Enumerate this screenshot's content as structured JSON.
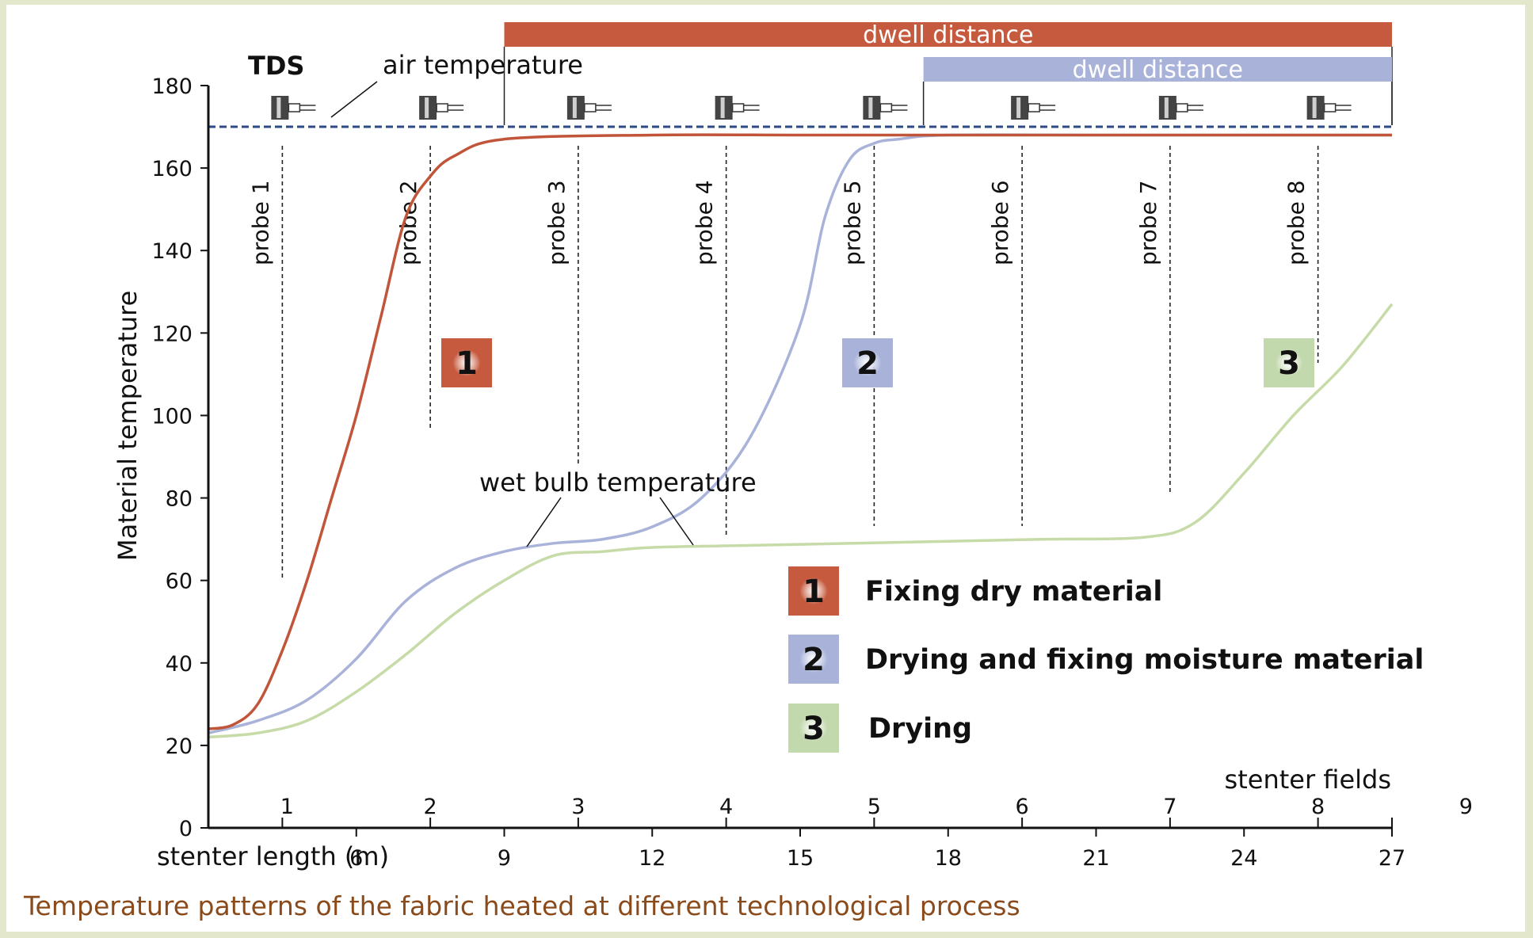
{
  "title": "TDS",
  "caption": "Temperature patterns of the fabric heated at different technological process",
  "annotations": {
    "air_temperature": "air temperature",
    "wet_bulb_temperature": "wet bulb temperature"
  },
  "dwell_bars": [
    {
      "label": "dwell distance",
      "color": "#c55a3e",
      "x_start": 9,
      "x_end": 27
    },
    {
      "label": "dwell distance",
      "color": "#a9b3d9",
      "x_start": 17.5,
      "x_end": 27
    }
  ],
  "probes": [
    {
      "label": "probe 1",
      "x": 4.5
    },
    {
      "label": "probe 2",
      "x": 7.5
    },
    {
      "label": "probe 3",
      "x": 10.5
    },
    {
      "label": "probe 4",
      "x": 13.5
    },
    {
      "label": "probe 5",
      "x": 16.5
    },
    {
      "label": "probe 6",
      "x": 19.5
    },
    {
      "label": "probe 7",
      "x": 22.5
    },
    {
      "label": "probe 8",
      "x": 25.5
    }
  ],
  "legend": [
    {
      "num": "1",
      "label": "Fixing dry material",
      "color": "#c55a3e"
    },
    {
      "num": "2",
      "label": "Drying and fixing moisture material",
      "color": "#a9b3d9"
    },
    {
      "num": "3",
      "label": "Drying",
      "color": "#c2d8ad"
    }
  ],
  "stenter_fields": {
    "label": "stenter fields",
    "items": [
      "1",
      "2",
      "3",
      "4",
      "5",
      "6",
      "7",
      "8",
      "9"
    ]
  },
  "colors": {
    "curve1": "#c0553a",
    "curve2": "#a9b3d9",
    "curve3": "#c6dba8",
    "air_line": "#2a4a8a",
    "axis": "#111111",
    "caption": "#8b4a1a",
    "background": "#e3e8cc"
  },
  "chart_data": {
    "type": "line",
    "title": "TDS",
    "xlabel": "stenter length (m)",
    "ylabel": "Material temperature",
    "xlim": [
      3,
      27
    ],
    "ylim": [
      0,
      180
    ],
    "xticks": [
      6,
      9,
      12,
      15,
      18,
      21,
      24,
      27
    ],
    "yticks": [
      0,
      20,
      40,
      60,
      80,
      100,
      120,
      140,
      160,
      180
    ],
    "grid": false,
    "legend_position": "bottom-right",
    "air_temperature": 170,
    "series": [
      {
        "name": "Fixing dry material",
        "x": [
          3,
          3.5,
          4,
          4.5,
          5,
          5.5,
          6,
          6.5,
          7,
          7.5,
          8,
          9,
          12,
          15,
          18,
          21,
          24,
          27
        ],
        "y": [
          24,
          25,
          30,
          43,
          60,
          80,
          100,
          124,
          148,
          158,
          163,
          167,
          168,
          168,
          168,
          168,
          168,
          168
        ]
      },
      {
        "name": "Drying and fixing moisture material",
        "x": [
          3,
          4,
          5,
          6,
          7,
          8,
          9,
          10,
          11,
          12,
          13,
          14,
          15,
          15.5,
          16,
          16.5,
          17,
          18,
          21,
          24,
          27
        ],
        "y": [
          23,
          26,
          31,
          41,
          55,
          63,
          67,
          69,
          70,
          73,
          80,
          95,
          122,
          148,
          162,
          166,
          167,
          168,
          168,
          168,
          168
        ]
      },
      {
        "name": "Drying",
        "x": [
          3,
          4,
          5,
          6,
          7,
          8,
          9,
          10,
          11,
          12,
          14,
          16,
          18,
          20,
          22,
          23,
          24,
          25,
          26,
          27
        ],
        "y": [
          22,
          23,
          26,
          33,
          42,
          52,
          60,
          66,
          67,
          68,
          68.5,
          69,
          69.5,
          70,
          70.5,
          74,
          86,
          100,
          112,
          127
        ]
      }
    ]
  }
}
